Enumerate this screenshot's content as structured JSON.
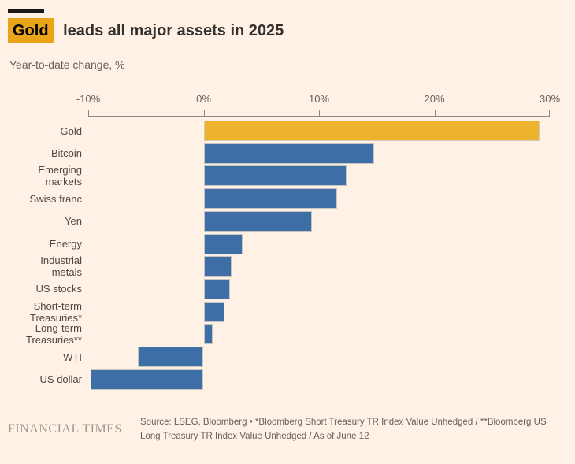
{
  "header": {
    "highlight_word": "Gold",
    "title_rest": "leads all major assets in 2025",
    "subtitle": "Year-to-date change, %"
  },
  "chart_data": {
    "type": "bar",
    "orientation": "horizontal",
    "title": "Gold leads all major assets in 2025",
    "subtitle": "Year-to-date change, %",
    "xlabel": "Year-to-date change, %",
    "xlim": [
      -10,
      30
    ],
    "x_ticks": [
      "-10%",
      "0%",
      "10%",
      "20%",
      "30%"
    ],
    "grid": false,
    "categories": [
      "Gold",
      "Bitcoin",
      "Emerging\nmarkets",
      "Swiss franc",
      "Yen",
      "Energy",
      "Industrial\nmetals",
      "US stocks",
      "Short-term\nTreasuries*",
      "Long-term\nTreasuries**",
      "WTI",
      "US dollar"
    ],
    "values": [
      29.1,
      14.8,
      12.4,
      11.6,
      9.4,
      3.4,
      2.4,
      2.3,
      1.8,
      0.8,
      -5.7,
      -9.8
    ],
    "highlight_index": 0,
    "colors": {
      "highlight_bar": "#EDB32D",
      "default_bar": "#3D6FA6"
    }
  },
  "theme": {
    "background": "#FFF1E5",
    "title_highlight_bg": "#E9A41A",
    "text_dark": "#33302E",
    "text_muted": "#66605C",
    "axis_line": "#8F8880",
    "brand_gray": "#A0968C"
  },
  "footer": {
    "brand": "FINANCIAL TIMES",
    "source": "Source: LSEG, Bloomberg • *Bloomberg Short Treasury TR Index Value Unhedged / **Bloomberg US\nLong Treasury TR Index Value Unhedged / As of June 12"
  }
}
